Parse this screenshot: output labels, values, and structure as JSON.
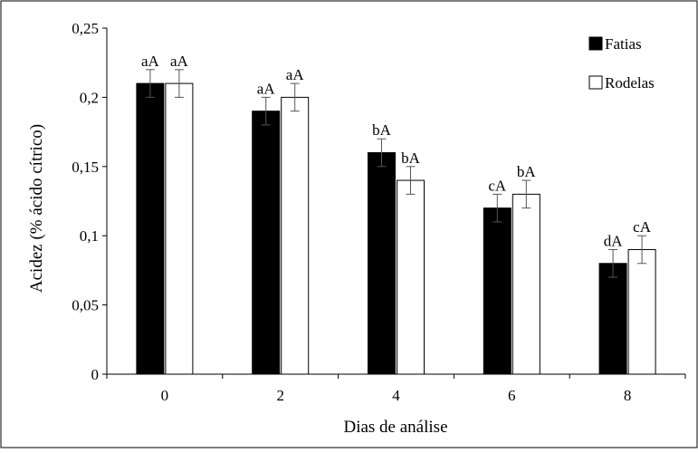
{
  "chart_data": {
    "type": "bar",
    "title": "",
    "xlabel": "Dias de análise",
    "ylabel": "Acidez (% ácido cítrico)",
    "categories": [
      "0",
      "2",
      "4",
      "6",
      "8"
    ],
    "ylim": [
      0,
      0.25
    ],
    "yticks": [
      0,
      0.05,
      0.1,
      0.15,
      0.2,
      0.25
    ],
    "ytick_labels": [
      "0",
      "0,05",
      "0,1",
      "0,15",
      "0,2",
      "0,25"
    ],
    "grid": false,
    "legend_position": "top-right",
    "series": [
      {
        "name": "Fatias",
        "color": "#000000",
        "values": [
          0.21,
          0.19,
          0.16,
          0.12,
          0.08
        ],
        "errors": [
          0.01,
          0.01,
          0.01,
          0.01,
          0.01
        ],
        "labels": [
          "aA",
          "aA",
          "bA",
          "cA",
          "dA"
        ]
      },
      {
        "name": "Rodelas",
        "color": "#ffffff",
        "values": [
          0.21,
          0.2,
          0.14,
          0.13,
          0.09
        ],
        "errors": [
          0.01,
          0.01,
          0.01,
          0.01,
          0.01
        ],
        "labels": [
          "aA",
          "aA",
          "bA",
          "bA",
          "cA"
        ]
      }
    ]
  }
}
